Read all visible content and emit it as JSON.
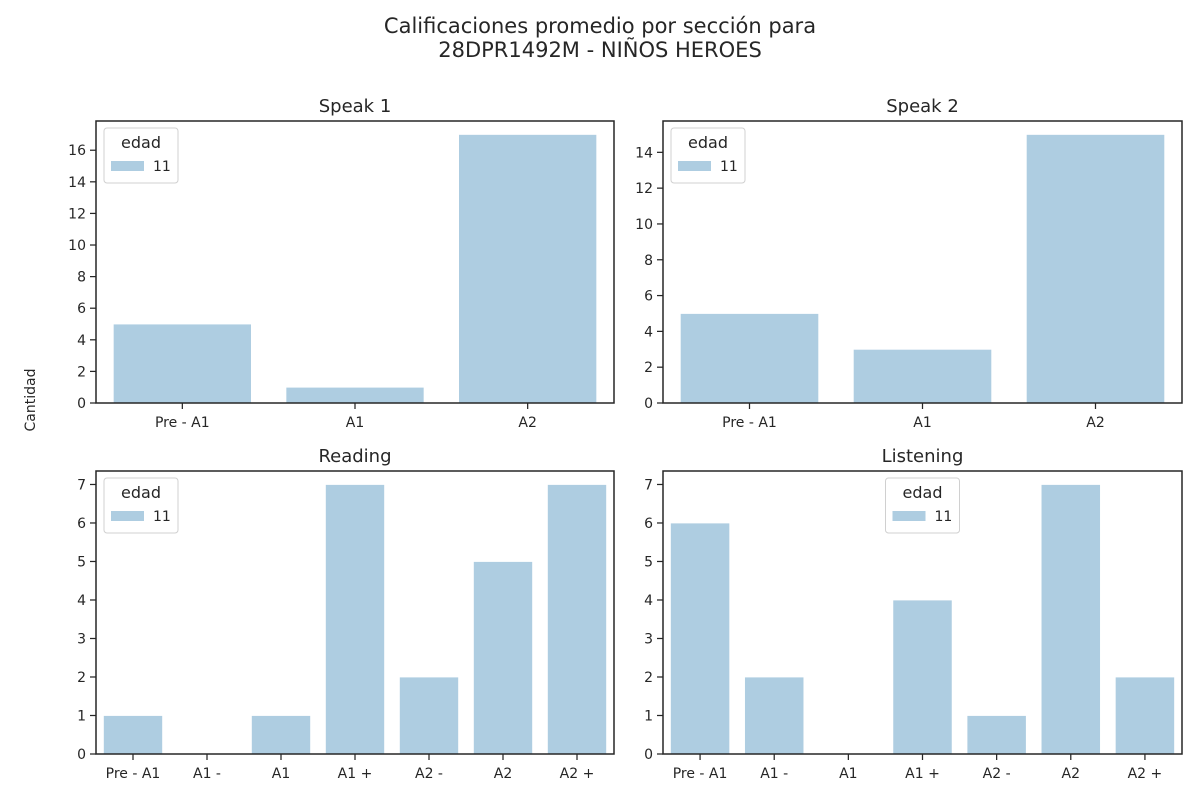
{
  "figure": {
    "title_line1": "Calificaciones promedio por sección para",
    "title_line2": "28DPR1492M - NIÑOS HEROES",
    "ylabel": "Cantidad",
    "bar_color": "#aecde1"
  },
  "chart_data": [
    {
      "type": "bar",
      "title": "Speak 1",
      "categories": [
        "Pre - A1",
        "A1",
        "A2"
      ],
      "series": [
        {
          "name": "11",
          "values": [
            5,
            1,
            17
          ]
        }
      ],
      "ylim": [
        0,
        17.85
      ],
      "yticks": [
        0,
        2,
        4,
        6,
        8,
        10,
        12,
        14,
        16
      ],
      "legend": {
        "title": "edad",
        "position": "upper-left"
      },
      "grid": false
    },
    {
      "type": "bar",
      "title": "Speak 2",
      "categories": [
        "Pre - A1",
        "A1",
        "A2"
      ],
      "series": [
        {
          "name": "11",
          "values": [
            5,
            3,
            15
          ]
        }
      ],
      "ylim": [
        0,
        15.75
      ],
      "yticks": [
        0,
        2,
        4,
        6,
        8,
        10,
        12,
        14
      ],
      "legend": {
        "title": "edad",
        "position": "upper-left"
      },
      "grid": false
    },
    {
      "type": "bar",
      "title": "Reading",
      "categories": [
        "Pre - A1",
        "A1 -",
        "A1",
        "A1 +",
        "A2 -",
        "A2",
        "A2 +"
      ],
      "series": [
        {
          "name": "11",
          "values": [
            1,
            0,
            1,
            7,
            2,
            5,
            7
          ]
        }
      ],
      "ylim": [
        0,
        7.35
      ],
      "yticks": [
        0,
        1,
        2,
        3,
        4,
        5,
        6,
        7
      ],
      "legend": {
        "title": "edad",
        "position": "upper-left"
      },
      "grid": false
    },
    {
      "type": "bar",
      "title": "Listening",
      "categories": [
        "Pre - A1",
        "A1 -",
        "A1",
        "A1 +",
        "A2 -",
        "A2",
        "A2 +"
      ],
      "series": [
        {
          "name": "11",
          "values": [
            6,
            2,
            0,
            4,
            1,
            7,
            2
          ]
        }
      ],
      "ylim": [
        0,
        7.35
      ],
      "yticks": [
        0,
        1,
        2,
        3,
        4,
        5,
        6,
        7
      ],
      "legend": {
        "title": "edad",
        "position": "upper-center"
      },
      "grid": false
    }
  ]
}
